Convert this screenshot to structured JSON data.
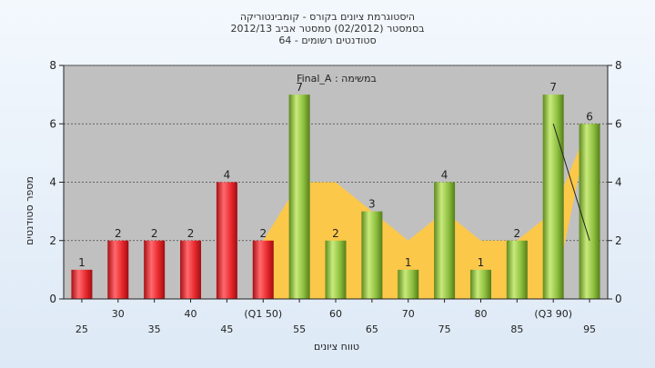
{
  "chart_data": {
    "type": "bar",
    "title": [
      "היסטוגרמת ציונים בקורס - קומבינטוריקה",
      "בסמסטר  (02/2012)  סמסטר אביב 2012/13",
      "סטודנטים רשומים - 64"
    ],
    "annotation": "במשימה : Final_A",
    "xlabel": "טווח ציונים",
    "ylabel": "מספר סטודנטים",
    "ylim": [
      0,
      8
    ],
    "yticks": [
      "0",
      "2",
      "4",
      "6",
      "8"
    ],
    "grid": true,
    "categories": [
      "25",
      "30",
      "35",
      "40",
      "45",
      "(Q1 50)",
      "55",
      "60",
      "65",
      "70",
      "75",
      "80",
      "85",
      "(Q3 90)",
      "95"
    ],
    "values": [
      1,
      2,
      2,
      2,
      4,
      2,
      7,
      2,
      3,
      1,
      4,
      1,
      2,
      7,
      6
    ],
    "data_labels": [
      "1",
      "2",
      "2",
      "2",
      "4",
      "2",
      "7",
      "2",
      "3",
      "1",
      "4",
      "1",
      "2",
      "7",
      "6"
    ],
    "bar_colors": [
      "red",
      "red",
      "red",
      "red",
      "red",
      "red",
      "green",
      "green",
      "green",
      "green",
      "green",
      "green",
      "green",
      "green",
      "green"
    ],
    "interquartile_area": {
      "from": "(Q1 50)",
      "to": "(Q3 90)",
      "values": [
        2,
        4,
        4,
        3,
        2,
        3,
        2,
        2,
        3,
        6
      ]
    },
    "line_segment": {
      "from": "(Q3 90)",
      "to": "95",
      "values": [
        6,
        2
      ]
    },
    "colors": {
      "plot_bg": "#c0c0c0",
      "red_bar": "#e8282d",
      "green_bar": "#8dbf3e",
      "area": "#fcc84a",
      "grid": "#444444"
    }
  }
}
